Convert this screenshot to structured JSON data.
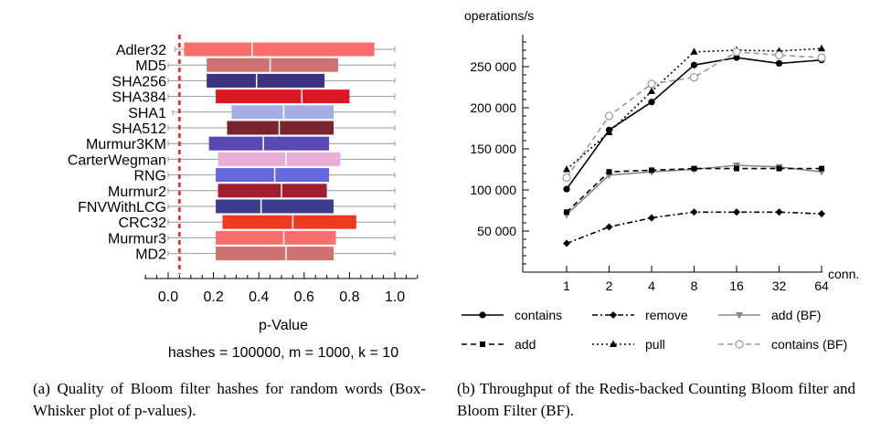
{
  "chart_data": [
    {
      "type": "box",
      "title": "",
      "xlabel": "p-Value",
      "subtitle": "hashes = 100000, m = 1000, k = 10",
      "xlim": [
        -0.1,
        1.1
      ],
      "xticks": [
        "0.0",
        "0.2",
        "0.4",
        "0.6",
        "0.8",
        "1.0"
      ],
      "xtick_values": [
        0.0,
        0.2,
        0.4,
        0.6,
        0.8,
        1.0
      ],
      "reference_line": {
        "x": 0.05,
        "color": "#e8231f",
        "style": "dashed"
      },
      "categories": [
        "Adler32",
        "MD5",
        "SHA256",
        "SHA384",
        "SHA1",
        "SHA512",
        "Murmur3KM",
        "CarterWegman",
        "RNG",
        "Murmur2",
        "FNVWithLCG",
        "CRC32",
        "Murmur3",
        "MD2"
      ],
      "boxes": [
        {
          "name": "Adler32",
          "min": 0.03,
          "q1": 0.07,
          "median": 0.37,
          "q3": 0.91,
          "max": 1.0,
          "color": "#fb6e6e"
        },
        {
          "name": "MD5",
          "min": 0.0,
          "q1": 0.17,
          "median": 0.45,
          "q3": 0.75,
          "max": 1.0,
          "color": "#d07070"
        },
        {
          "name": "SHA256",
          "min": 0.0,
          "q1": 0.17,
          "median": 0.39,
          "q3": 0.69,
          "max": 1.0,
          "color": "#3a3480"
        },
        {
          "name": "SHA384",
          "min": 0.0,
          "q1": 0.21,
          "median": 0.59,
          "q3": 0.8,
          "max": 1.0,
          "color": "#d81a22"
        },
        {
          "name": "SHA1",
          "min": 0.02,
          "q1": 0.28,
          "median": 0.51,
          "q3": 0.73,
          "max": 1.0,
          "color": "#a3aee6"
        },
        {
          "name": "SHA512",
          "min": 0.0,
          "q1": 0.26,
          "median": 0.49,
          "q3": 0.73,
          "max": 1.0,
          "color": "#7a2430"
        },
        {
          "name": "Murmur3KM",
          "min": 0.0,
          "q1": 0.18,
          "median": 0.42,
          "q3": 0.71,
          "max": 1.0,
          "color": "#5a48b4"
        },
        {
          "name": "CarterWegman",
          "min": 0.0,
          "q1": 0.22,
          "median": 0.52,
          "q3": 0.76,
          "max": 1.0,
          "color": "#e8aed8"
        },
        {
          "name": "RNG",
          "min": 0.0,
          "q1": 0.21,
          "median": 0.47,
          "q3": 0.71,
          "max": 1.0,
          "color": "#6468dc"
        },
        {
          "name": "Murmur2",
          "min": 0.0,
          "q1": 0.22,
          "median": 0.5,
          "q3": 0.7,
          "max": 1.0,
          "color": "#a21c2e"
        },
        {
          "name": "FNVWithLCG",
          "min": 0.0,
          "q1": 0.21,
          "median": 0.41,
          "q3": 0.73,
          "max": 1.0,
          "color": "#3b3c8c"
        },
        {
          "name": "CRC32",
          "min": 0.0,
          "q1": 0.24,
          "median": 0.55,
          "q3": 0.83,
          "max": 1.0,
          "color": "#ee3a1e"
        },
        {
          "name": "Murmur3",
          "min": 0.0,
          "q1": 0.21,
          "median": 0.51,
          "q3": 0.74,
          "max": 1.0,
          "color": "#fb6e6e"
        },
        {
          "name": "MD2",
          "min": 0.0,
          "q1": 0.21,
          "median": 0.52,
          "q3": 0.73,
          "max": 1.0,
          "color": "#d07070"
        }
      ]
    },
    {
      "type": "line",
      "title": "",
      "ylabel": "operations/s",
      "xlabel": "conn.",
      "categories": [
        "1",
        "2",
        "4",
        "8",
        "16",
        "32",
        "64"
      ],
      "ylim": [
        0,
        290000
      ],
      "yticks": [
        "50 000",
        "100 000",
        "150 000",
        "200 000",
        "250 000"
      ],
      "ytick_values": [
        50000,
        100000,
        150000,
        200000,
        250000
      ],
      "legend_position": "bottom",
      "series": [
        {
          "name": "contains",
          "values": [
            101000,
            173000,
            207000,
            252000,
            261000,
            254000,
            258000
          ],
          "color": "#000000",
          "dash": "solid",
          "marker": "circle"
        },
        {
          "name": "remove",
          "values": [
            35000,
            55000,
            66000,
            73000,
            73000,
            73000,
            71000
          ],
          "color": "#000000",
          "dash": "dashdot",
          "marker": "diamond"
        },
        {
          "name": "add (BF)",
          "values": [
            70000,
            118000,
            122000,
            125000,
            130000,
            128000,
            122000
          ],
          "color": "#888888",
          "dash": "solid",
          "marker": "triangle-down"
        },
        {
          "name": "add",
          "values": [
            73000,
            122000,
            124000,
            126000,
            126000,
            126000,
            126000
          ],
          "color": "#000000",
          "dash": "dashed",
          "marker": "square"
        },
        {
          "name": "pull",
          "values": [
            125000,
            170000,
            220000,
            268000,
            270000,
            269000,
            272000
          ],
          "color": "#000000",
          "dash": "dotted",
          "marker": "triangle-up"
        },
        {
          "name": "contains (BF)",
          "values": [
            115000,
            190000,
            229000,
            237000,
            268000,
            264000,
            261000
          ],
          "color": "#999999",
          "dash": "dashed",
          "marker": "open-circle"
        }
      ]
    }
  ],
  "captions": {
    "a": "(a)  Quality of Bloom filter hashes for random words (Box-Whisker plot of p-values).",
    "b": "(b)  Throughput of the Redis-backed Counting Bloom filter and Bloom Filter (BF)."
  }
}
